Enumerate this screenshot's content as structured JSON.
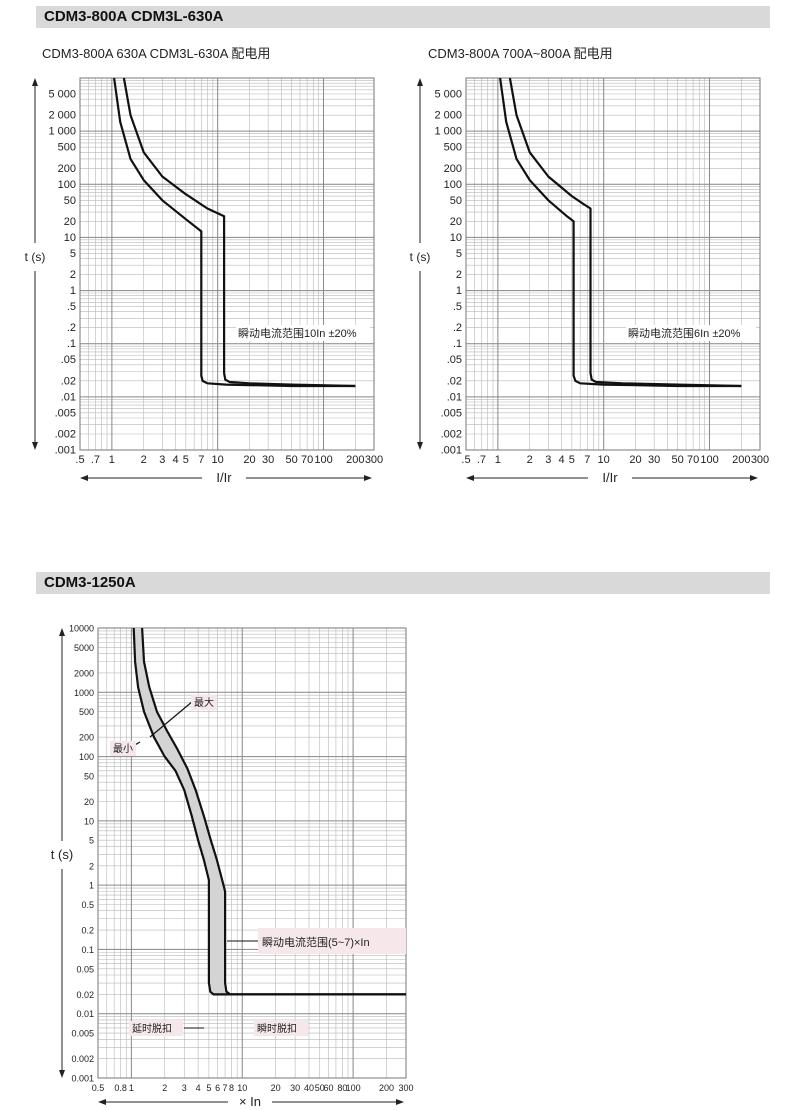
{
  "sections": [
    {
      "title": "CDM3-800A  CDM3L-630A"
    },
    {
      "title": "CDM3-1250A"
    }
  ],
  "chart_data": [
    {
      "type": "line",
      "title": "CDM3-800A 630A CDM3L-630A 配电用",
      "ylabel": "t (s)",
      "xlabel": "I/Ir",
      "x_scale": "log",
      "y_scale": "log",
      "xlim": [
        0.5,
        300
      ],
      "ylim": [
        0.001,
        10000
      ],
      "x_ticks": [
        ".5",
        ".7",
        "1",
        "2",
        "3",
        "4",
        "5",
        "7",
        "10",
        "20",
        "30",
        "50",
        "70",
        "100",
        "200",
        "300"
      ],
      "y_ticks": [
        "5 000",
        "2 000",
        "1 000",
        "500",
        "200",
        "100",
        "50",
        "20",
        "10",
        "5",
        "2",
        "1",
        ".5",
        ".2",
        ".1",
        ".05",
        ".02",
        ".01",
        ".005",
        ".002",
        ".001"
      ],
      "annotation": "瞬动电流范围10In ±20%",
      "grid": true,
      "series": [
        {
          "x": [
            1.05,
            1.2,
            1.5,
            2,
            3,
            5,
            7,
            7,
            7.2,
            8,
            12,
            50,
            200
          ],
          "y": [
            10000,
            1500,
            300,
            120,
            50,
            22,
            13,
            0.025,
            0.02,
            0.018,
            0.017,
            0.016,
            0.016
          ]
        },
        {
          "x": [
            1.3,
            1.5,
            2,
            3,
            5,
            8,
            11.5,
            11.5,
            11.8,
            13,
            20,
            50,
            200
          ],
          "y": [
            10000,
            2000,
            400,
            140,
            65,
            35,
            25,
            0.028,
            0.021,
            0.019,
            0.018,
            0.017,
            0.016
          ]
        }
      ]
    },
    {
      "type": "line",
      "title": "CDM3-800A  700A~800A 配电用",
      "ylabel": "t (s)",
      "xlabel": "I/Ir",
      "x_scale": "log",
      "y_scale": "log",
      "xlim": [
        0.5,
        300
      ],
      "ylim": [
        0.001,
        10000
      ],
      "x_ticks": [
        ".5",
        ".7",
        "1",
        "2",
        "3",
        "4",
        "5",
        "7",
        "10",
        "20",
        "30",
        "50",
        "70",
        "100",
        "200",
        "300"
      ],
      "y_ticks": [
        "5 000",
        "2 000",
        "1 000",
        "500",
        "200",
        "100",
        "50",
        "20",
        "10",
        "5",
        "2",
        "1",
        ".5",
        ".2",
        ".1",
        ".05",
        ".02",
        ".01",
        ".005",
        ".002",
        ".001"
      ],
      "annotation": "瞬动电流范围6In ±20%",
      "grid": true,
      "series": [
        {
          "x": [
            1.05,
            1.2,
            1.5,
            2,
            3,
            4.5,
            5.2,
            5.2,
            5.4,
            6,
            10,
            50,
            200
          ],
          "y": [
            10000,
            1500,
            300,
            120,
            50,
            25,
            20,
            0.025,
            0.02,
            0.018,
            0.017,
            0.016,
            0.016
          ]
        },
        {
          "x": [
            1.3,
            1.5,
            2,
            3,
            5,
            6.5,
            7.5,
            7.5,
            7.7,
            8.5,
            15,
            50,
            200
          ],
          "y": [
            10000,
            2000,
            400,
            140,
            60,
            42,
            35,
            0.028,
            0.021,
            0.019,
            0.018,
            0.017,
            0.016
          ]
        }
      ]
    },
    {
      "type": "area",
      "title": "",
      "ylabel": "t (s)",
      "xlabel": "× In",
      "x_scale": "log",
      "y_scale": "log",
      "xlim": [
        0.5,
        300
      ],
      "ylim": [
        0.001,
        10000
      ],
      "x_ticks": [
        "0.5",
        "0.8",
        "1",
        "2",
        "3",
        "4",
        "5",
        "6",
        "7",
        "8",
        "10",
        "20",
        "30",
        "40",
        "50",
        "60",
        "80",
        "100",
        "200",
        "300"
      ],
      "y_ticks": [
        "10000",
        "5000",
        "2000",
        "1000",
        "500",
        "200",
        "100",
        "50",
        "20",
        "10",
        "5",
        "2",
        "1",
        "0.5",
        "0.2",
        "0.1",
        "0.05",
        "0.02",
        "0.01",
        "0.005",
        "0.002",
        "0.001"
      ],
      "labels": {
        "max": "最大",
        "min": "最小",
        "instant_range": "瞬动电流范围(5~7)×In",
        "delay_trip": "延时脱扣",
        "instant_trip": "瞬时脱扣"
      },
      "fill_color": "#d4d4d4",
      "grid": true,
      "series": [
        {
          "name": "最小",
          "x": [
            1.05,
            1.08,
            1.15,
            1.3,
            1.6,
            2,
            2.5,
            3,
            3.5,
            4,
            4.5,
            5,
            5,
            5.15,
            5.5,
            7,
            20,
            300
          ],
          "y": [
            10000,
            3000,
            1200,
            500,
            200,
            100,
            60,
            30,
            12,
            5,
            2.5,
            1.2,
            0.03,
            0.022,
            0.02,
            0.02,
            0.02,
            0.02
          ]
        },
        {
          "name": "最大",
          "x": [
            1.25,
            1.3,
            1.45,
            1.7,
            2.1,
            2.6,
            3.2,
            3.8,
            4.5,
            5.2,
            5.9,
            6.6,
            7,
            7,
            7.2,
            7.8,
            10,
            300
          ],
          "y": [
            10000,
            3000,
            1200,
            500,
            250,
            130,
            65,
            30,
            12,
            5,
            2.5,
            1.2,
            0.8,
            0.03,
            0.022,
            0.02,
            0.02,
            0.02
          ]
        }
      ]
    }
  ]
}
